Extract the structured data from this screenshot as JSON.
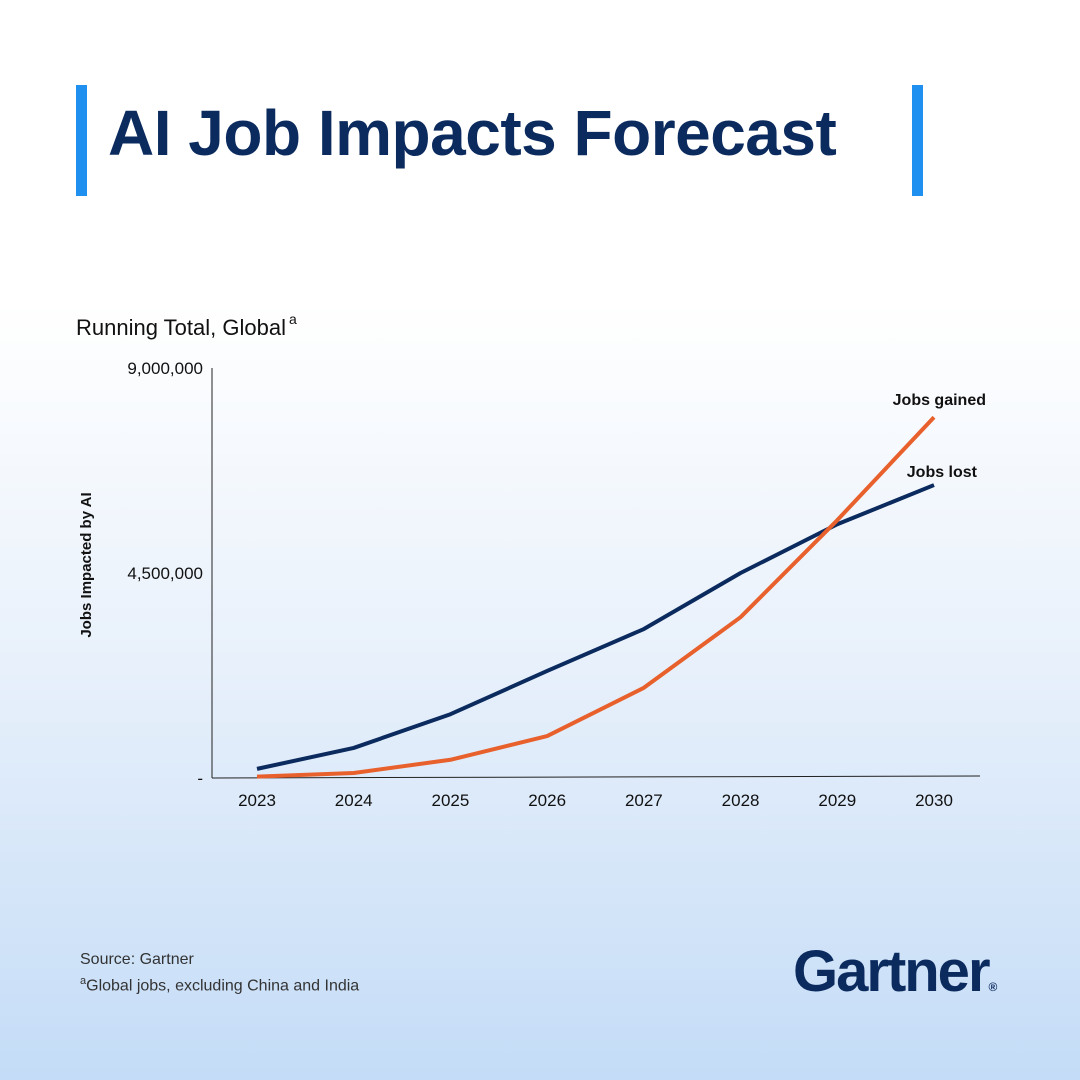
{
  "header": {
    "title": "AI Job Impacts Forecast"
  },
  "chart_data": {
    "type": "line",
    "subtitle": "Running Total, Global",
    "subtitle_footnote_mark": "a",
    "ylabel": "Jobs Impacted by AI",
    "xlabel": "",
    "ylim": [
      0,
      9000000
    ],
    "y_ticks": [
      {
        "value": 0,
        "label": "-"
      },
      {
        "value": 4500000,
        "label": "4,500,000"
      },
      {
        "value": 9000000,
        "label": "9,000,000"
      }
    ],
    "categories": [
      "2023",
      "2024",
      "2025",
      "2026",
      "2027",
      "2028",
      "2029",
      "2030"
    ],
    "grid": false,
    "legend": "direct labels at line ends",
    "series": [
      {
        "name": "Jobs lost",
        "color": "#0b2a5e",
        "values": [
          200000,
          660000,
          1400000,
          2350000,
          3270000,
          4500000,
          5570000,
          6430000
        ]
      },
      {
        "name": "Jobs gained",
        "color": "#e8602c",
        "values": [
          30000,
          110000,
          400000,
          920000,
          1980000,
          3530000,
          5660000,
          7920000
        ]
      }
    ]
  },
  "footer": {
    "source": "Source: Gartner",
    "footnote_mark": "a",
    "footnote": "Global jobs, excluding China and India",
    "logo": "Gartner",
    "logo_mark": "®"
  },
  "colors": {
    "title": "#0b2a5e",
    "accent_bar": "#1f8ff0"
  }
}
